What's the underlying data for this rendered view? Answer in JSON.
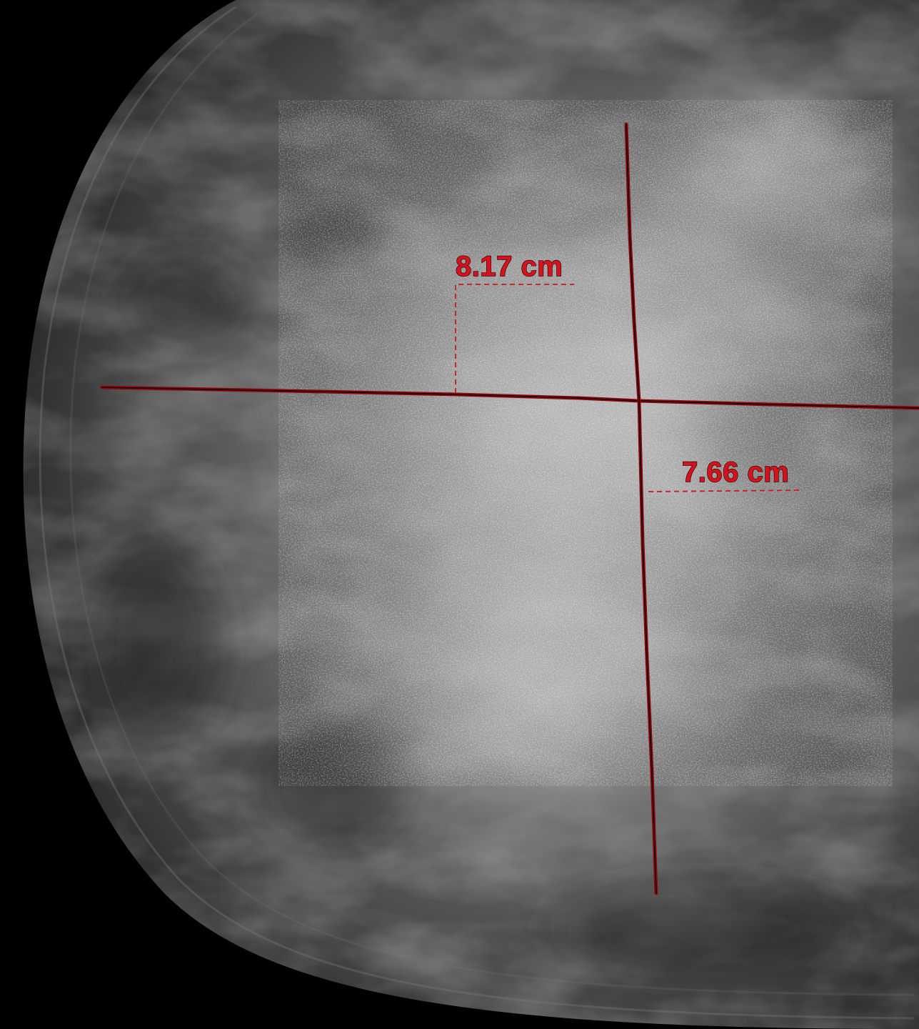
{
  "image": {
    "kind": "mammogram",
    "colors": {
      "background": "#000000",
      "annotation": "#d4141c",
      "annotation_line": "#8a0a10"
    }
  },
  "measurements": [
    {
      "id": "horizontal",
      "label": "8.17 cm",
      "value": 8.17,
      "unit": "cm"
    },
    {
      "id": "vertical",
      "label": "7.66 cm",
      "value": 7.66,
      "unit": "cm"
    }
  ]
}
